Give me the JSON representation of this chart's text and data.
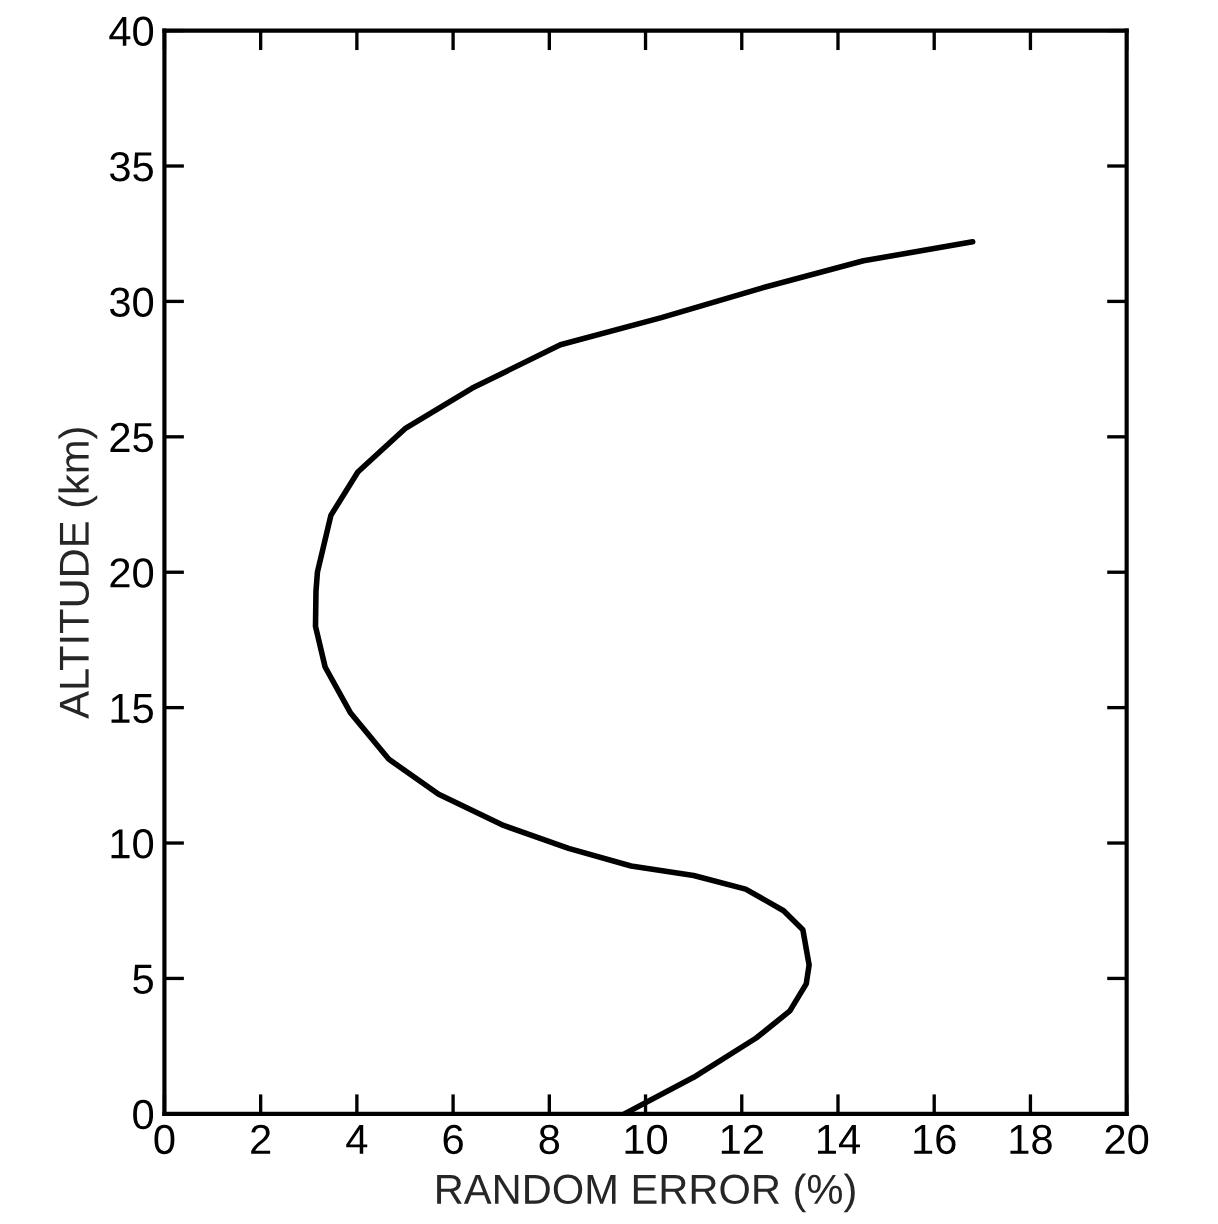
{
  "chart_data": {
    "type": "line",
    "xlabel": "RANDOM ERROR (%)",
    "ylabel": "ALTITUDE (km)",
    "xlim": [
      0,
      20
    ],
    "ylim": [
      0,
      40
    ],
    "xticks": [
      0,
      2,
      4,
      6,
      8,
      10,
      12,
      14,
      16,
      18,
      20
    ],
    "yticks": [
      0,
      5,
      10,
      15,
      20,
      25,
      30,
      35,
      40
    ],
    "grid": false,
    "legend": false,
    "marker": "none",
    "line_style": "solid",
    "series": [
      {
        "color": "#000000",
        "x": [
          9.56,
          11.0,
          12.3,
          13.0,
          13.34,
          13.4,
          13.27,
          12.87,
          12.08,
          11.0,
          9.7,
          8.4,
          7.05,
          5.7,
          4.66,
          3.87,
          3.34,
          3.14,
          3.15,
          3.18,
          3.46,
          4.02,
          5.0,
          6.4,
          8.23,
          10.33,
          12.43,
          14.53,
          16.8
        ],
        "values": [
          0,
          1.35,
          2.8,
          3.8,
          4.8,
          5.5,
          6.8,
          7.5,
          8.3,
          8.8,
          9.15,
          9.8,
          10.65,
          11.8,
          13.1,
          14.8,
          16.5,
          18.0,
          19.3,
          20.0,
          22.1,
          23.7,
          25.3,
          26.8,
          28.4,
          29.4,
          30.5,
          31.5,
          32.2
        ]
      }
    ]
  }
}
